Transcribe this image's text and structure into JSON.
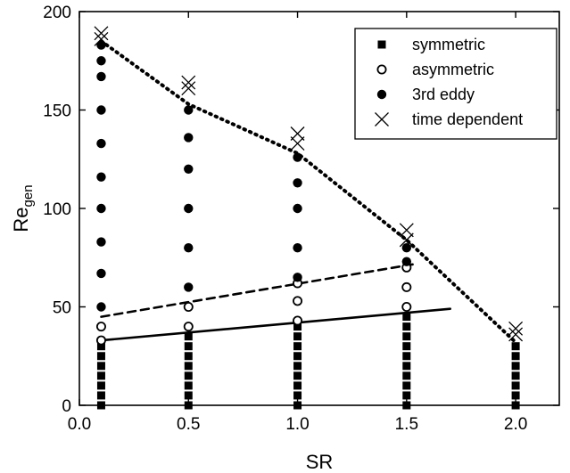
{
  "chart_data": {
    "type": "scatter",
    "xlabel": "SR",
    "ylabel": "Re",
    "ylabel_subscript": "gen",
    "xlim": [
      0.0,
      2.2
    ],
    "ylim": [
      0,
      200
    ],
    "xticks": [
      0.0,
      0.5,
      1.0,
      1.5,
      2.0
    ],
    "xtick_labels": [
      "0.0",
      "0.5",
      "1.0",
      "1.5",
      "2.0"
    ],
    "yticks": [
      0,
      50,
      100,
      150,
      200
    ],
    "ytick_labels": [
      "0",
      "50",
      "100",
      "150",
      "200"
    ],
    "grid": false,
    "legend_position": "top-right",
    "series": [
      {
        "name": "symmetric",
        "marker": "square-filled",
        "points": [
          [
            0.1,
            0
          ],
          [
            0.1,
            5
          ],
          [
            0.1,
            10
          ],
          [
            0.1,
            15
          ],
          [
            0.1,
            20
          ],
          [
            0.1,
            25
          ],
          [
            0.1,
            30
          ],
          [
            0.5,
            0
          ],
          [
            0.5,
            5
          ],
          [
            0.5,
            10
          ],
          [
            0.5,
            15
          ],
          [
            0.5,
            20
          ],
          [
            0.5,
            25
          ],
          [
            0.5,
            30
          ],
          [
            0.5,
            35
          ],
          [
            1.0,
            0
          ],
          [
            1.0,
            5
          ],
          [
            1.0,
            10
          ],
          [
            1.0,
            15
          ],
          [
            1.0,
            20
          ],
          [
            1.0,
            25
          ],
          [
            1.0,
            30
          ],
          [
            1.0,
            35
          ],
          [
            1.0,
            40
          ],
          [
            1.5,
            0
          ],
          [
            1.5,
            5
          ],
          [
            1.5,
            10
          ],
          [
            1.5,
            15
          ],
          [
            1.5,
            20
          ],
          [
            1.5,
            25
          ],
          [
            1.5,
            30
          ],
          [
            1.5,
            35
          ],
          [
            1.5,
            40
          ],
          [
            1.5,
            45
          ],
          [
            2.0,
            0
          ],
          [
            2.0,
            5
          ],
          [
            2.0,
            10
          ],
          [
            2.0,
            15
          ],
          [
            2.0,
            20
          ],
          [
            2.0,
            25
          ],
          [
            2.0,
            30
          ]
        ]
      },
      {
        "name": "asymmetric",
        "marker": "circle-open",
        "points": [
          [
            0.1,
            33
          ],
          [
            0.1,
            40
          ],
          [
            0.5,
            40
          ],
          [
            0.5,
            50
          ],
          [
            1.0,
            43
          ],
          [
            1.0,
            53
          ],
          [
            1.0,
            62
          ],
          [
            1.5,
            50
          ],
          [
            1.5,
            60
          ],
          [
            1.5,
            70
          ]
        ]
      },
      {
        "name": "3rd eddy",
        "marker": "circle-filled",
        "points": [
          [
            0.1,
            50
          ],
          [
            0.1,
            67
          ],
          [
            0.1,
            83
          ],
          [
            0.1,
            100
          ],
          [
            0.1,
            116
          ],
          [
            0.1,
            133
          ],
          [
            0.1,
            150
          ],
          [
            0.1,
            167
          ],
          [
            0.1,
            175
          ],
          [
            0.1,
            183
          ],
          [
            0.5,
            60
          ],
          [
            0.5,
            80
          ],
          [
            0.5,
            100
          ],
          [
            0.5,
            120
          ],
          [
            0.5,
            136
          ],
          [
            0.5,
            150
          ],
          [
            1.0,
            65
          ],
          [
            1.0,
            80
          ],
          [
            1.0,
            100
          ],
          [
            1.0,
            113
          ],
          [
            1.0,
            126
          ],
          [
            1.5,
            73
          ],
          [
            1.5,
            80
          ]
        ]
      },
      {
        "name": "time dependent",
        "marker": "x",
        "points": [
          [
            0.1,
            186
          ],
          [
            0.1,
            189
          ],
          [
            0.5,
            161
          ],
          [
            0.5,
            164
          ],
          [
            1.0,
            133
          ],
          [
            1.0,
            138
          ],
          [
            1.5,
            84
          ],
          [
            1.5,
            89
          ],
          [
            2.0,
            36
          ],
          [
            2.0,
            39
          ]
        ]
      }
    ],
    "lines": [
      {
        "style": "solid",
        "points": [
          [
            0.1,
            33
          ],
          [
            1.7,
            49
          ]
        ]
      },
      {
        "style": "dashed",
        "points": [
          [
            0.1,
            45
          ],
          [
            1.55,
            72
          ]
        ]
      },
      {
        "style": "dotted",
        "points": [
          [
            0.1,
            185
          ],
          [
            0.5,
            153
          ],
          [
            1.0,
            128
          ],
          [
            1.5,
            84
          ],
          [
            2.0,
            32
          ]
        ]
      }
    ]
  }
}
